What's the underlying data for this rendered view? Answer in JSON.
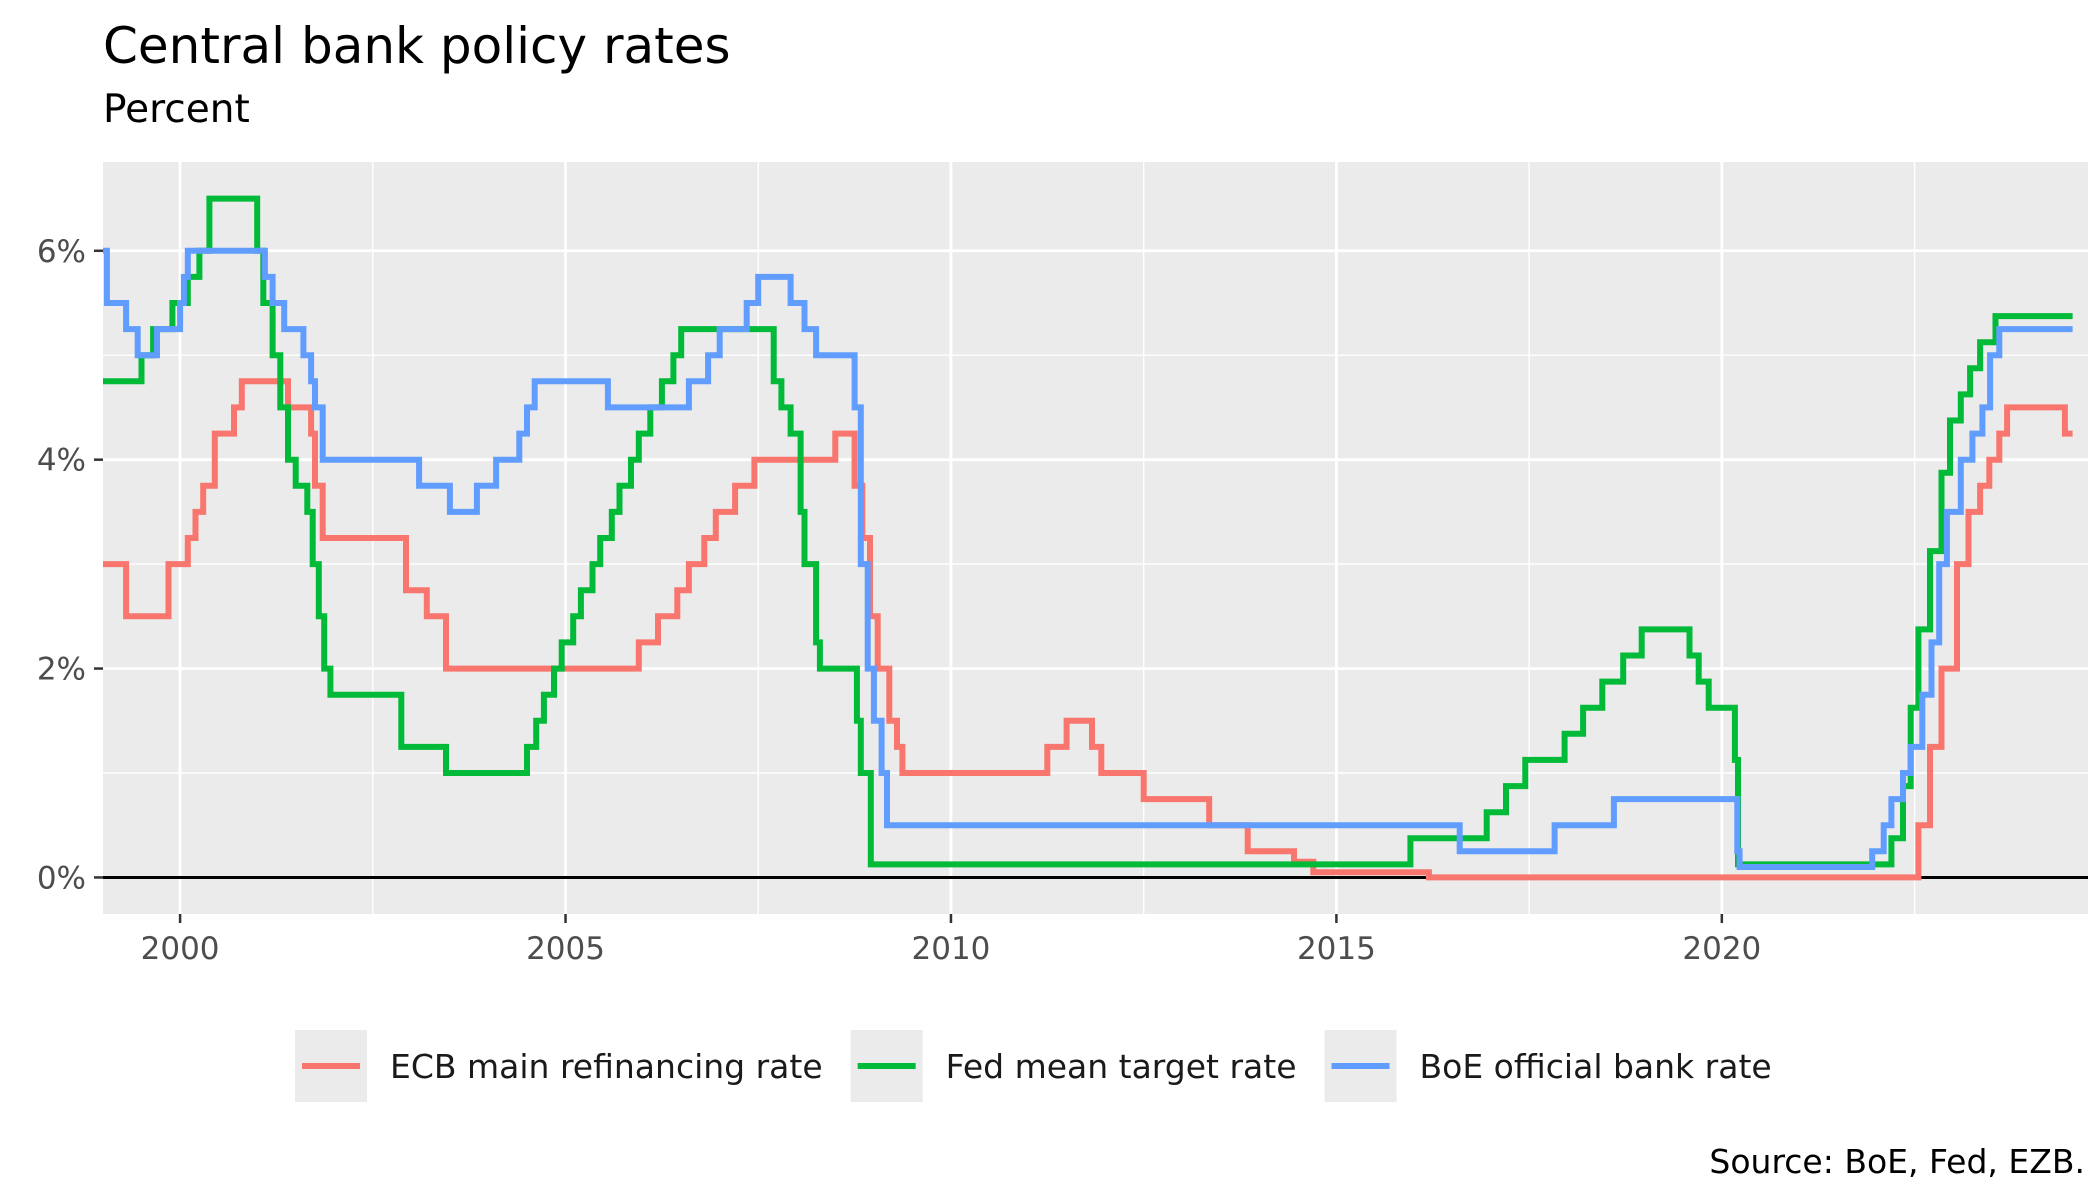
{
  "chart_data": {
    "type": "line",
    "title": "Central bank policy rates",
    "subtitle": "Percent",
    "caption": "Source: BoE, Fed, EZB.",
    "xlim": [
      1999.0,
      2024.75
    ],
    "ylim": [
      -0.35,
      6.85
    ],
    "x_ticks": [
      2000,
      2005,
      2010,
      2015,
      2020
    ],
    "y_ticks": [
      0,
      2,
      4,
      6
    ],
    "y_tick_labels": [
      "0%",
      "2%",
      "4%",
      "6%"
    ],
    "grid": true,
    "zero_line": true,
    "legend_position": "bottom",
    "series": [
      {
        "name": "ECB main refinancing rate",
        "color": "#F8766D",
        "steps": [
          [
            1999.0,
            3.0
          ],
          [
            1999.3,
            2.5
          ],
          [
            1999.85,
            3.0
          ],
          [
            2000.1,
            3.25
          ],
          [
            2000.2,
            3.5
          ],
          [
            2000.3,
            3.75
          ],
          [
            2000.45,
            4.25
          ],
          [
            2000.7,
            4.5
          ],
          [
            2000.8,
            4.75
          ],
          [
            2001.4,
            4.5
          ],
          [
            2001.7,
            4.25
          ],
          [
            2001.75,
            3.75
          ],
          [
            2001.85,
            3.25
          ],
          [
            2002.93,
            2.75
          ],
          [
            2003.2,
            2.5
          ],
          [
            2003.45,
            2.0
          ],
          [
            2005.95,
            2.25
          ],
          [
            2006.2,
            2.5
          ],
          [
            2006.45,
            2.75
          ],
          [
            2006.6,
            3.0
          ],
          [
            2006.8,
            3.25
          ],
          [
            2006.95,
            3.5
          ],
          [
            2007.2,
            3.75
          ],
          [
            2007.45,
            4.0
          ],
          [
            2008.5,
            4.25
          ],
          [
            2008.75,
            3.75
          ],
          [
            2008.85,
            3.25
          ],
          [
            2008.95,
            2.5
          ],
          [
            2009.05,
            2.0
          ],
          [
            2009.2,
            1.5
          ],
          [
            2009.3,
            1.25
          ],
          [
            2009.37,
            1.0
          ],
          [
            2011.25,
            1.25
          ],
          [
            2011.5,
            1.5
          ],
          [
            2011.83,
            1.25
          ],
          [
            2011.95,
            1.0
          ],
          [
            2012.5,
            0.75
          ],
          [
            2013.35,
            0.5
          ],
          [
            2013.85,
            0.25
          ],
          [
            2014.45,
            0.15
          ],
          [
            2014.7,
            0.05
          ],
          [
            2016.2,
            0.0
          ],
          [
            2022.55,
            0.5
          ],
          [
            2022.7,
            1.25
          ],
          [
            2022.85,
            2.0
          ],
          [
            2023.05,
            3.0
          ],
          [
            2023.2,
            3.5
          ],
          [
            2023.35,
            3.75
          ],
          [
            2023.47,
            4.0
          ],
          [
            2023.6,
            4.25
          ],
          [
            2023.7,
            4.5
          ],
          [
            2024.45,
            4.25
          ],
          [
            2024.55,
            4.25
          ]
        ]
      },
      {
        "name": "Fed mean target rate",
        "color": "#00BA38",
        "steps": [
          [
            1999.0,
            4.75
          ],
          [
            1999.5,
            5.0
          ],
          [
            1999.65,
            5.25
          ],
          [
            1999.9,
            5.5
          ],
          [
            2000.1,
            5.75
          ],
          [
            2000.25,
            6.0
          ],
          [
            2000.38,
            6.5
          ],
          [
            2001.0,
            6.0
          ],
          [
            2001.08,
            5.5
          ],
          [
            2001.2,
            5.0
          ],
          [
            2001.3,
            4.5
          ],
          [
            2001.4,
            4.0
          ],
          [
            2001.5,
            3.75
          ],
          [
            2001.65,
            3.5
          ],
          [
            2001.72,
            3.0
          ],
          [
            2001.8,
            2.5
          ],
          [
            2001.87,
            2.0
          ],
          [
            2001.95,
            1.75
          ],
          [
            2002.87,
            1.25
          ],
          [
            2003.45,
            1.0
          ],
          [
            2004.5,
            1.25
          ],
          [
            2004.62,
            1.5
          ],
          [
            2004.72,
            1.75
          ],
          [
            2004.85,
            2.0
          ],
          [
            2004.95,
            2.25
          ],
          [
            2005.1,
            2.5
          ],
          [
            2005.2,
            2.75
          ],
          [
            2005.35,
            3.0
          ],
          [
            2005.45,
            3.25
          ],
          [
            2005.6,
            3.5
          ],
          [
            2005.7,
            3.75
          ],
          [
            2005.85,
            4.0
          ],
          [
            2005.95,
            4.25
          ],
          [
            2006.1,
            4.5
          ],
          [
            2006.25,
            4.75
          ],
          [
            2006.4,
            5.0
          ],
          [
            2006.5,
            5.25
          ],
          [
            2007.7,
            4.75
          ],
          [
            2007.8,
            4.5
          ],
          [
            2007.92,
            4.25
          ],
          [
            2008.05,
            3.5
          ],
          [
            2008.1,
            3.0
          ],
          [
            2008.25,
            2.25
          ],
          [
            2008.3,
            2.0
          ],
          [
            2008.78,
            1.5
          ],
          [
            2008.83,
            1.0
          ],
          [
            2008.96,
            0.125
          ],
          [
            2015.96,
            0.375
          ],
          [
            2016.95,
            0.625
          ],
          [
            2017.2,
            0.875
          ],
          [
            2017.45,
            1.125
          ],
          [
            2017.96,
            1.375
          ],
          [
            2018.2,
            1.625
          ],
          [
            2018.45,
            1.875
          ],
          [
            2018.72,
            2.125
          ],
          [
            2018.96,
            2.375
          ],
          [
            2019.58,
            2.125
          ],
          [
            2019.7,
            1.875
          ],
          [
            2019.83,
            1.625
          ],
          [
            2020.17,
            1.125
          ],
          [
            2020.21,
            0.125
          ],
          [
            2022.2,
            0.375
          ],
          [
            2022.35,
            0.875
          ],
          [
            2022.45,
            1.625
          ],
          [
            2022.55,
            2.375
          ],
          [
            2022.7,
            3.125
          ],
          [
            2022.85,
            3.875
          ],
          [
            2022.96,
            4.375
          ],
          [
            2023.1,
            4.625
          ],
          [
            2023.22,
            4.875
          ],
          [
            2023.35,
            5.125
          ],
          [
            2023.55,
            5.375
          ],
          [
            2024.55,
            5.375
          ]
        ]
      },
      {
        "name": "BoE official bank rate",
        "color": "#619CFF",
        "steps": [
          [
            1999.0,
            6.0
          ],
          [
            1999.05,
            5.5
          ],
          [
            1999.3,
            5.25
          ],
          [
            1999.45,
            5.0
          ],
          [
            1999.7,
            5.25
          ],
          [
            2000.0,
            5.5
          ],
          [
            2000.05,
            5.75
          ],
          [
            2000.1,
            6.0
          ],
          [
            2001.1,
            5.75
          ],
          [
            2001.2,
            5.5
          ],
          [
            2001.35,
            5.25
          ],
          [
            2001.6,
            5.0
          ],
          [
            2001.7,
            4.75
          ],
          [
            2001.75,
            4.5
          ],
          [
            2001.85,
            4.0
          ],
          [
            2003.1,
            3.75
          ],
          [
            2003.5,
            3.5
          ],
          [
            2003.85,
            3.75
          ],
          [
            2004.1,
            4.0
          ],
          [
            2004.4,
            4.25
          ],
          [
            2004.5,
            4.5
          ],
          [
            2004.6,
            4.75
          ],
          [
            2005.55,
            4.5
          ],
          [
            2006.6,
            4.75
          ],
          [
            2006.85,
            5.0
          ],
          [
            2007.0,
            5.25
          ],
          [
            2007.35,
            5.5
          ],
          [
            2007.5,
            5.75
          ],
          [
            2007.92,
            5.5
          ],
          [
            2008.1,
            5.25
          ],
          [
            2008.25,
            5.0
          ],
          [
            2008.75,
            4.5
          ],
          [
            2008.83,
            3.0
          ],
          [
            2008.92,
            2.0
          ],
          [
            2009.0,
            1.5
          ],
          [
            2009.1,
            1.0
          ],
          [
            2009.17,
            0.5
          ],
          [
            2016.6,
            0.25
          ],
          [
            2017.83,
            0.5
          ],
          [
            2018.6,
            0.75
          ],
          [
            2020.2,
            0.25
          ],
          [
            2020.23,
            0.1
          ],
          [
            2021.95,
            0.25
          ],
          [
            2022.1,
            0.5
          ],
          [
            2022.2,
            0.75
          ],
          [
            2022.35,
            1.0
          ],
          [
            2022.45,
            1.25
          ],
          [
            2022.6,
            1.75
          ],
          [
            2022.72,
            2.25
          ],
          [
            2022.82,
            3.0
          ],
          [
            2022.92,
            3.5
          ],
          [
            2023.1,
            4.0
          ],
          [
            2023.25,
            4.25
          ],
          [
            2023.38,
            4.5
          ],
          [
            2023.48,
            5.0
          ],
          [
            2023.6,
            5.25
          ],
          [
            2024.55,
            5.25
          ]
        ]
      }
    ]
  }
}
